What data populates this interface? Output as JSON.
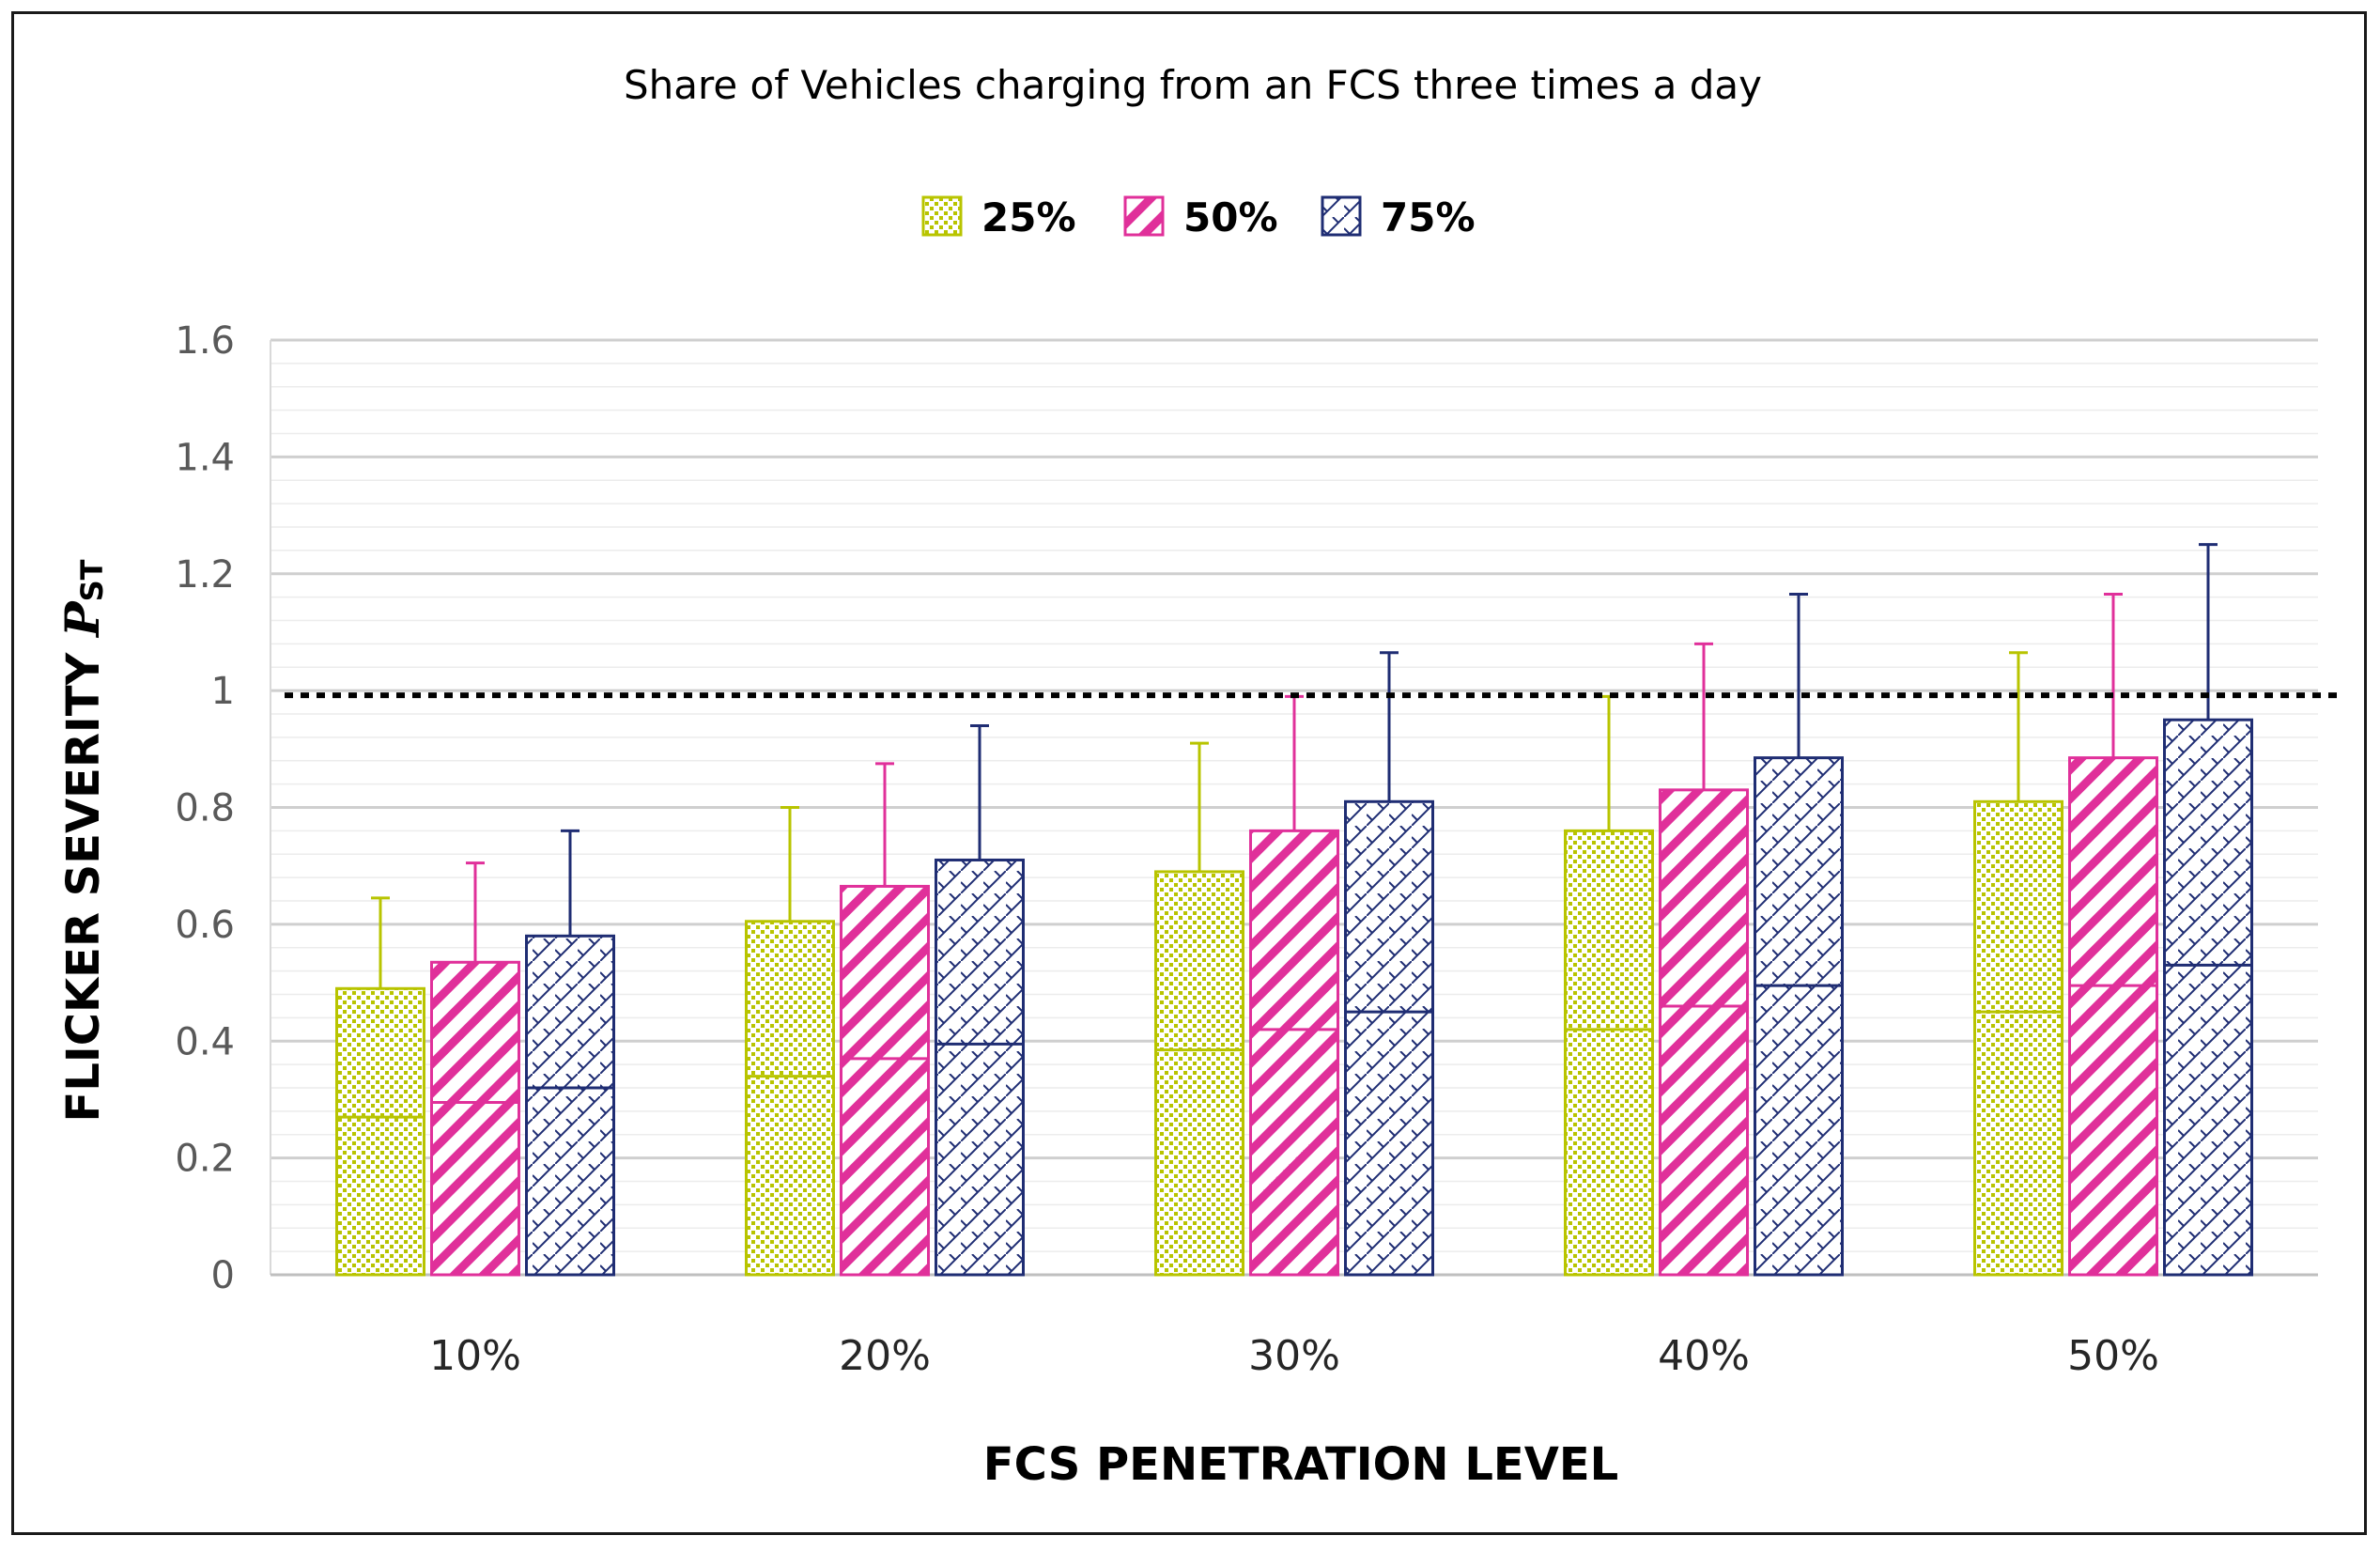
{
  "chart_data": {
    "type": "bar",
    "title": "Share of Vehicles charging from an FCS three times a day",
    "xlabel": "FCS PENETRATION LEVEL",
    "ylabel_main": "FLICKER SEVERITY ",
    "ylabel_symbol": "P",
    "ylabel_sub": "ST",
    "categories": [
      "10%",
      "20%",
      "30%",
      "40%",
      "50%"
    ],
    "ylim": [
      0,
      1.6
    ],
    "yticks": [
      0,
      0.2,
      0.4,
      0.6,
      0.8,
      1,
      1.2,
      1.4,
      1.6
    ],
    "ytick_labels": [
      "0",
      "0.2",
      "0.4",
      "0.6",
      "0.8",
      "1",
      "1.2",
      "1.4",
      "1.6"
    ],
    "minor_grid_step": 0.04,
    "threshold": 1.0,
    "legend_position": "top-center",
    "series": [
      {
        "name": "25%",
        "color": "#b8c400",
        "pattern": "dots",
        "values": [
          0.49,
          0.605,
          0.69,
          0.76,
          0.81
        ],
        "inner_lines": [
          0.27,
          0.34,
          0.385,
          0.42,
          0.45
        ],
        "error_top": [
          0.645,
          0.8,
          0.91,
          0.99,
          1.065
        ]
      },
      {
        "name": "50%",
        "color": "#e0309a",
        "pattern": "diagonal",
        "values": [
          0.535,
          0.665,
          0.76,
          0.83,
          0.885
        ],
        "inner_lines": [
          0.295,
          0.37,
          0.42,
          0.46,
          0.495
        ],
        "error_top": [
          0.705,
          0.875,
          0.99,
          1.08,
          1.165
        ]
      },
      {
        "name": "75%",
        "color": "#1f2d73",
        "pattern": "crosshatch",
        "values": [
          0.58,
          0.71,
          0.81,
          0.885,
          0.95
        ],
        "inner_lines": [
          0.32,
          0.395,
          0.45,
          0.495,
          0.53
        ],
        "error_top": [
          0.76,
          0.94,
          1.065,
          1.165,
          1.25
        ]
      }
    ]
  }
}
